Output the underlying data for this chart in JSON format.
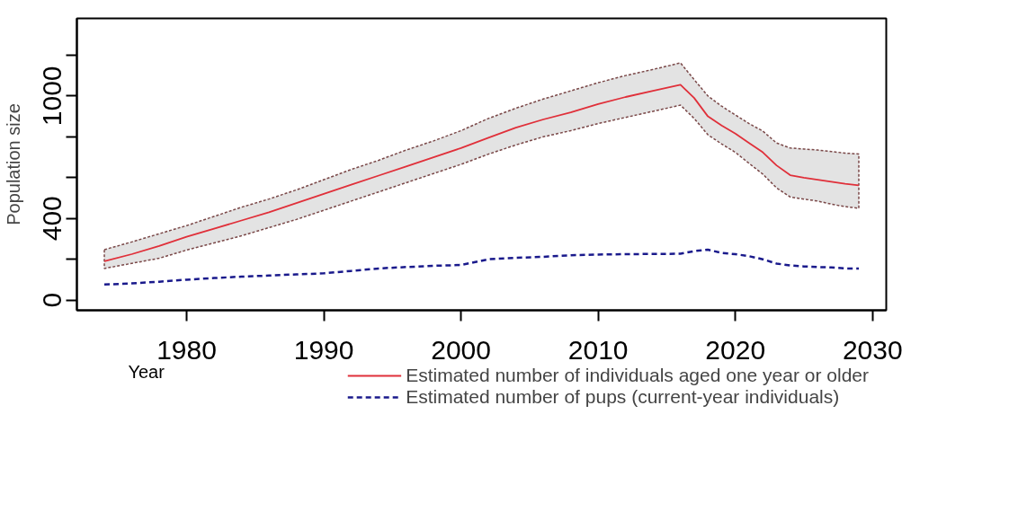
{
  "chart_data": {
    "type": "line",
    "xlabel": "Year",
    "ylabel": "Population size",
    "x": [
      1974,
      1976,
      1978,
      1980,
      1982,
      1984,
      1986,
      1988,
      1990,
      1992,
      1994,
      1996,
      1998,
      2000,
      2002,
      2004,
      2006,
      2008,
      2010,
      2012,
      2014,
      2016,
      2017,
      2018,
      2019,
      2020,
      2021,
      2022,
      2023,
      2024,
      2025,
      2026,
      2027,
      2028,
      2029
    ],
    "series": [
      {
        "name": "Estimated number of individuals aged one year or older",
        "color": "#e0303a",
        "line_style": "solid",
        "values": [
          190,
          225,
          265,
          310,
          350,
          390,
          430,
          475,
          520,
          565,
          610,
          655,
          700,
          745,
          795,
          845,
          885,
          920,
          960,
          995,
          1025,
          1055,
          990,
          900,
          855,
          816,
          770,
          724,
          660,
          612,
          600,
          590,
          580,
          570,
          562
        ],
        "lower": [
          155,
          180,
          205,
          245,
          280,
          315,
          355,
          395,
          440,
          485,
          530,
          575,
          620,
          665,
          715,
          760,
          800,
          830,
          865,
          895,
          925,
          955,
          890,
          810,
          765,
          724,
          670,
          617,
          550,
          505,
          495,
          485,
          470,
          458,
          450
        ],
        "upper": [
          247,
          285,
          325,
          365,
          410,
          455,
          495,
          540,
          590,
          640,
          685,
          735,
          780,
          830,
          890,
          940,
          985,
          1025,
          1065,
          1100,
          1130,
          1162,
          1080,
          1000,
          950,
          907,
          865,
          828,
          770,
          745,
          740,
          735,
          728,
          720,
          716
        ]
      },
      {
        "name": "Estimated number of pups (current-year individuals)",
        "color": "#1a1a8c",
        "line_style": "dashed",
        "values": [
          76,
          82,
          90,
          100,
          108,
          115,
          120,
          126,
          131,
          143,
          155,
          162,
          168,
          172,
          200,
          207,
          212,
          220,
          223,
          225,
          226,
          227,
          240,
          247,
          231,
          225,
          215,
          200,
          179,
          170,
          165,
          162,
          160,
          155,
          155
        ]
      }
    ],
    "xlim": [
      1972,
      2031
    ],
    "ylim": [
      -50,
      1380
    ],
    "xticks": [
      1980,
      1990,
      2000,
      2010,
      2020,
      2030
    ],
    "yticks": [
      0,
      {
        "value": 200,
        "label": null
      },
      400,
      {
        "value": 600,
        "label": null
      },
      {
        "value": 800,
        "label": null
      },
      1000,
      {
        "value": 1200,
        "label": null
      }
    ],
    "grid": false,
    "legend": "bottom",
    "marker": "none"
  }
}
